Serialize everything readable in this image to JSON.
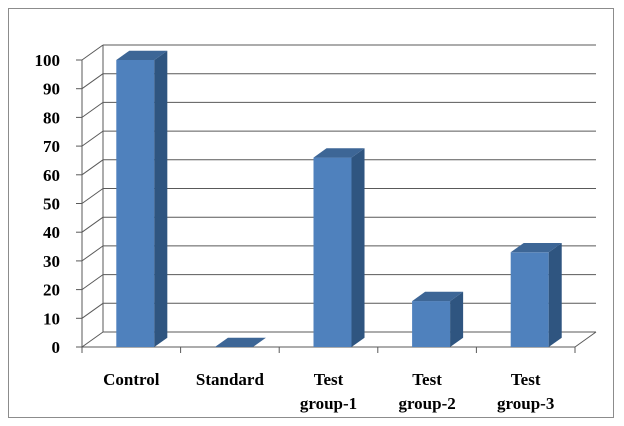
{
  "chart_data": {
    "type": "bar",
    "style": "3d-column",
    "categories": [
      "Control",
      "Standard",
      "Test group-1",
      "Test group-2",
      "Test group-3"
    ],
    "category_lines": [
      [
        "Control"
      ],
      [
        "Standard"
      ],
      [
        "Test",
        "group-1"
      ],
      [
        "Test",
        "group-2"
      ],
      [
        "Test",
        "group-3"
      ]
    ],
    "values": [
      100,
      0,
      66,
      16,
      33
    ],
    "ylim": [
      0,
      100
    ],
    "yticks": [
      0,
      10,
      20,
      30,
      40,
      50,
      60,
      70,
      80,
      90,
      100
    ],
    "grid": true,
    "legend": "none",
    "colors": {
      "bar_front": "#4f81bd",
      "bar_side": "#2f5580",
      "bar_top": "#3d6696",
      "grid": "#595959"
    }
  }
}
